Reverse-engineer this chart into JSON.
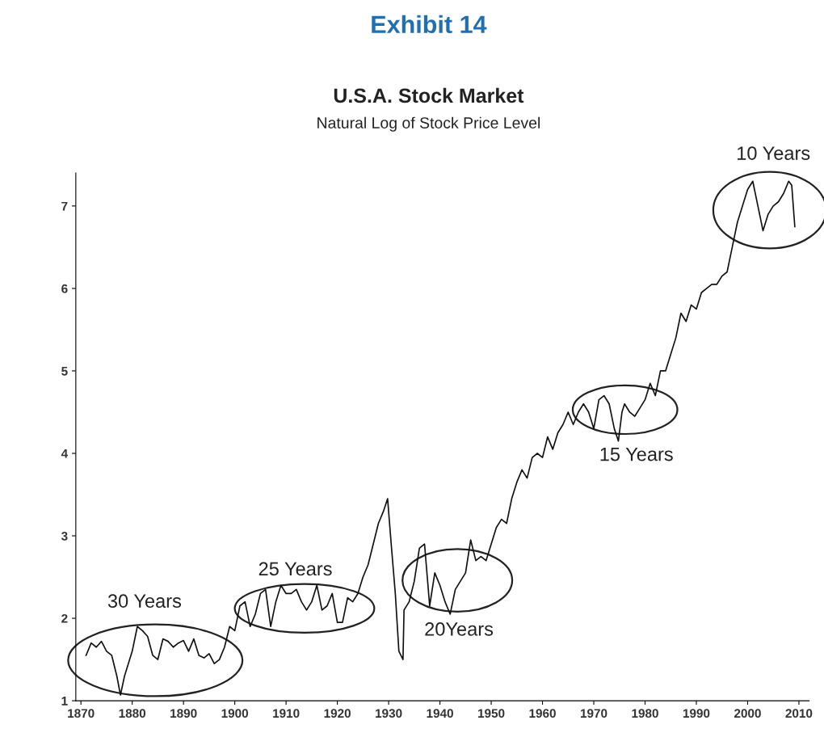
{
  "chart_data": {
    "type": "line",
    "title": "U.S.A. Stock Market",
    "subtitle": "Natural Log of Stock Price Level",
    "annotations": [
      "Exhibit 14",
      "30 Years",
      "25 Years",
      "20Years",
      "15 Years",
      "10 Years"
    ],
    "series": [
      {
        "color": "#111111",
        "x": [
          1871,
          1872,
          1873,
          1874,
          1875,
          1876,
          1877,
          1877.7,
          1878.5,
          1880,
          1881,
          1882,
          1883,
          1884,
          1885,
          1886,
          1887,
          1888,
          1889,
          1890,
          1891,
          1892,
          1893,
          1894,
          1895,
          1896,
          1897,
          1898,
          1899,
          1900,
          1901,
          1902,
          1903,
          1904,
          1905,
          1906,
          1907,
          1908,
          1909,
          1910,
          1911,
          1912,
          1913,
          1914,
          1915,
          1916,
          1917,
          1918,
          1919,
          1920,
          1921,
          1922,
          1923,
          1924,
          1925,
          1926,
          1927,
          1928,
          1929,
          1929.8,
          1930.5,
          1931.3,
          1932,
          1932.8,
          1933,
          1934,
          1935,
          1936,
          1937,
          1938,
          1939,
          1940,
          1941,
          1942,
          1943,
          1944,
          1945,
          1946,
          1947,
          1948,
          1949,
          1950,
          1951,
          1952,
          1953,
          1954,
          1955,
          1956,
          1957,
          1958,
          1959,
          1960,
          1961,
          1962,
          1963,
          1964,
          1965,
          1966,
          1967,
          1968,
          1969,
          1970,
          1971,
          1972,
          1973,
          1974,
          1974.8,
          1975.5,
          1976,
          1977,
          1978,
          1979,
          1980,
          1981,
          1982,
          1983,
          1984,
          1985,
          1986,
          1987,
          1988,
          1989,
          1990,
          1991,
          1992,
          1993,
          1994,
          1995,
          1996,
          1997,
          1998,
          1999,
          2000,
          2001,
          2002,
          2003,
          2004,
          2005,
          2006,
          2007,
          2008,
          2008.6,
          2009.2
        ],
        "values": [
          1.55,
          1.7,
          1.65,
          1.72,
          1.6,
          1.55,
          1.3,
          1.07,
          1.3,
          1.6,
          1.9,
          1.85,
          1.78,
          1.55,
          1.5,
          1.75,
          1.72,
          1.65,
          1.7,
          1.73,
          1.6,
          1.75,
          1.55,
          1.52,
          1.57,
          1.45,
          1.5,
          1.65,
          1.9,
          1.85,
          2.15,
          2.2,
          1.9,
          2.05,
          2.3,
          2.35,
          1.9,
          2.2,
          2.4,
          2.3,
          2.3,
          2.35,
          2.2,
          2.1,
          2.2,
          2.4,
          2.1,
          2.15,
          2.3,
          1.95,
          1.95,
          2.25,
          2.2,
          2.3,
          2.5,
          2.65,
          2.9,
          3.15,
          3.3,
          3.45,
          2.9,
          2.3,
          1.6,
          1.5,
          2.1,
          2.2,
          2.45,
          2.85,
          2.9,
          2.15,
          2.55,
          2.4,
          2.2,
          2.05,
          2.35,
          2.45,
          2.55,
          2.95,
          2.7,
          2.75,
          2.7,
          2.9,
          3.1,
          3.2,
          3.15,
          3.45,
          3.65,
          3.8,
          3.7,
          3.95,
          4.0,
          3.95,
          4.2,
          4.05,
          4.25,
          4.35,
          4.5,
          4.35,
          4.5,
          4.6,
          4.5,
          4.3,
          4.65,
          4.7,
          4.6,
          4.3,
          4.15,
          4.5,
          4.6,
          4.5,
          4.45,
          4.55,
          4.65,
          4.85,
          4.7,
          5.0,
          5.0,
          5.2,
          5.4,
          5.7,
          5.6,
          5.8,
          5.75,
          5.95,
          6.0,
          6.05,
          6.05,
          6.15,
          6.2,
          6.5,
          6.8,
          7.0,
          7.2,
          7.3,
          7.0,
          6.7,
          6.9,
          7.0,
          7.05,
          7.15,
          7.3,
          7.25,
          6.75
        ]
      }
    ],
    "xlim": [
      1869,
      2012
    ],
    "xticks": [
      1870,
      1880,
      1890,
      1900,
      1910,
      1920,
      1930,
      1940,
      1950,
      1960,
      1970,
      1980,
      1990,
      2000,
      2010
    ],
    "ylim": [
      1,
      7.4
    ],
    "yticks": [
      1,
      2,
      3,
      4,
      5,
      6,
      7
    ],
    "grid": false,
    "legend": false
  }
}
